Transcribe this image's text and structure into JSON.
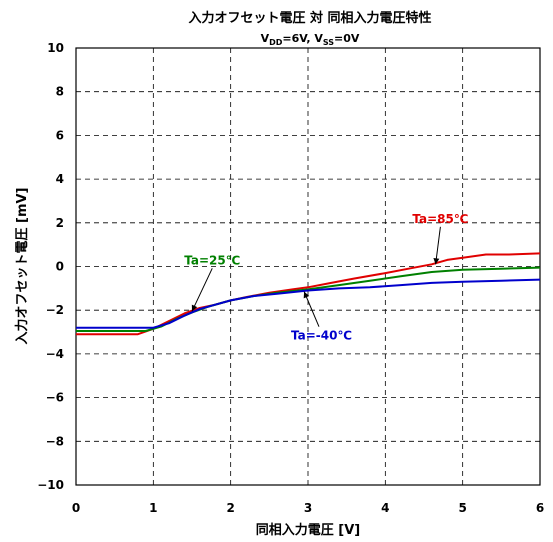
{
  "chart_data": {
    "type": "line",
    "title": "入力オフセット電圧 対 同相入力電圧特性",
    "subtitle": "V_DD=6V, V_SS=0V",
    "subtitle_parts": [
      "V",
      "DD",
      "=6V, V",
      "SS",
      "=0V"
    ],
    "xlabel": "同相入力電圧 [V]",
    "ylabel": "入力オフセット電圧 [mV]",
    "xlim": [
      0,
      6
    ],
    "ylim": [
      -10,
      10
    ],
    "xticks": [
      "0",
      "1",
      "2",
      "3",
      "4",
      "5",
      "6"
    ],
    "yticks": [
      "10",
      "8",
      "6",
      "4",
      "2",
      "0",
      "-2",
      "-4",
      "-6",
      "-8",
      "-10"
    ],
    "grid": true,
    "series": [
      {
        "name": "Ta=85℃",
        "color": "#e00000",
        "points": [
          [
            0,
            -3.1
          ],
          [
            0.8,
            -3.1
          ],
          [
            1.0,
            -2.85
          ],
          [
            1.2,
            -2.5
          ],
          [
            1.4,
            -2.15
          ],
          [
            1.6,
            -1.9
          ],
          [
            1.8,
            -1.75
          ],
          [
            2.0,
            -1.55
          ],
          [
            2.2,
            -1.4
          ],
          [
            2.5,
            -1.2
          ],
          [
            2.8,
            -1.05
          ],
          [
            3.0,
            -0.95
          ],
          [
            3.3,
            -0.75
          ],
          [
            3.6,
            -0.55
          ],
          [
            4.0,
            -0.3
          ],
          [
            4.3,
            -0.1
          ],
          [
            4.6,
            0.1
          ],
          [
            4.8,
            0.3
          ],
          [
            5.0,
            0.4
          ],
          [
            5.3,
            0.55
          ],
          [
            5.6,
            0.55
          ],
          [
            6.0,
            0.6
          ]
        ]
      },
      {
        "name": "Ta=25℃",
        "color": "#008000",
        "points": [
          [
            0,
            -2.95
          ],
          [
            0.9,
            -2.95
          ],
          [
            1.1,
            -2.75
          ],
          [
            1.3,
            -2.4
          ],
          [
            1.5,
            -2.1
          ],
          [
            1.7,
            -1.85
          ],
          [
            2.0,
            -1.55
          ],
          [
            2.3,
            -1.35
          ],
          [
            2.6,
            -1.2
          ],
          [
            3.0,
            -1.05
          ],
          [
            3.4,
            -0.85
          ],
          [
            3.8,
            -0.65
          ],
          [
            4.2,
            -0.45
          ],
          [
            4.6,
            -0.25
          ],
          [
            5.0,
            -0.15
          ],
          [
            5.5,
            -0.1
          ],
          [
            6.0,
            -0.05
          ]
        ]
      },
      {
        "name": "Ta=-40℃",
        "color": "#0000cc",
        "points": [
          [
            0,
            -2.8
          ],
          [
            1.0,
            -2.8
          ],
          [
            1.2,
            -2.6
          ],
          [
            1.4,
            -2.25
          ],
          [
            1.6,
            -1.95
          ],
          [
            1.8,
            -1.75
          ],
          [
            2.0,
            -1.55
          ],
          [
            2.3,
            -1.35
          ],
          [
            2.6,
            -1.25
          ],
          [
            3.0,
            -1.1
          ],
          [
            3.4,
            -1.0
          ],
          [
            3.8,
            -0.95
          ],
          [
            4.2,
            -0.85
          ],
          [
            4.6,
            -0.75
          ],
          [
            5.0,
            -0.7
          ],
          [
            5.5,
            -0.65
          ],
          [
            6.0,
            -0.6
          ]
        ]
      }
    ],
    "annotations": [
      {
        "text": "Ta=85℃",
        "color": "#e00000",
        "x": 4.35,
        "y": 2.0,
        "arrow_to": [
          4.65,
          0.1
        ]
      },
      {
        "text": "Ta=25℃",
        "color": "#008000",
        "x": 1.4,
        "y": 0.1,
        "arrow_to": [
          1.5,
          -2.05
        ]
      },
      {
        "text": "Ta=-40℃",
        "color": "#0000cc",
        "x": 2.78,
        "y": -3.35,
        "arrow_to": [
          2.95,
          -1.15
        ]
      }
    ]
  }
}
